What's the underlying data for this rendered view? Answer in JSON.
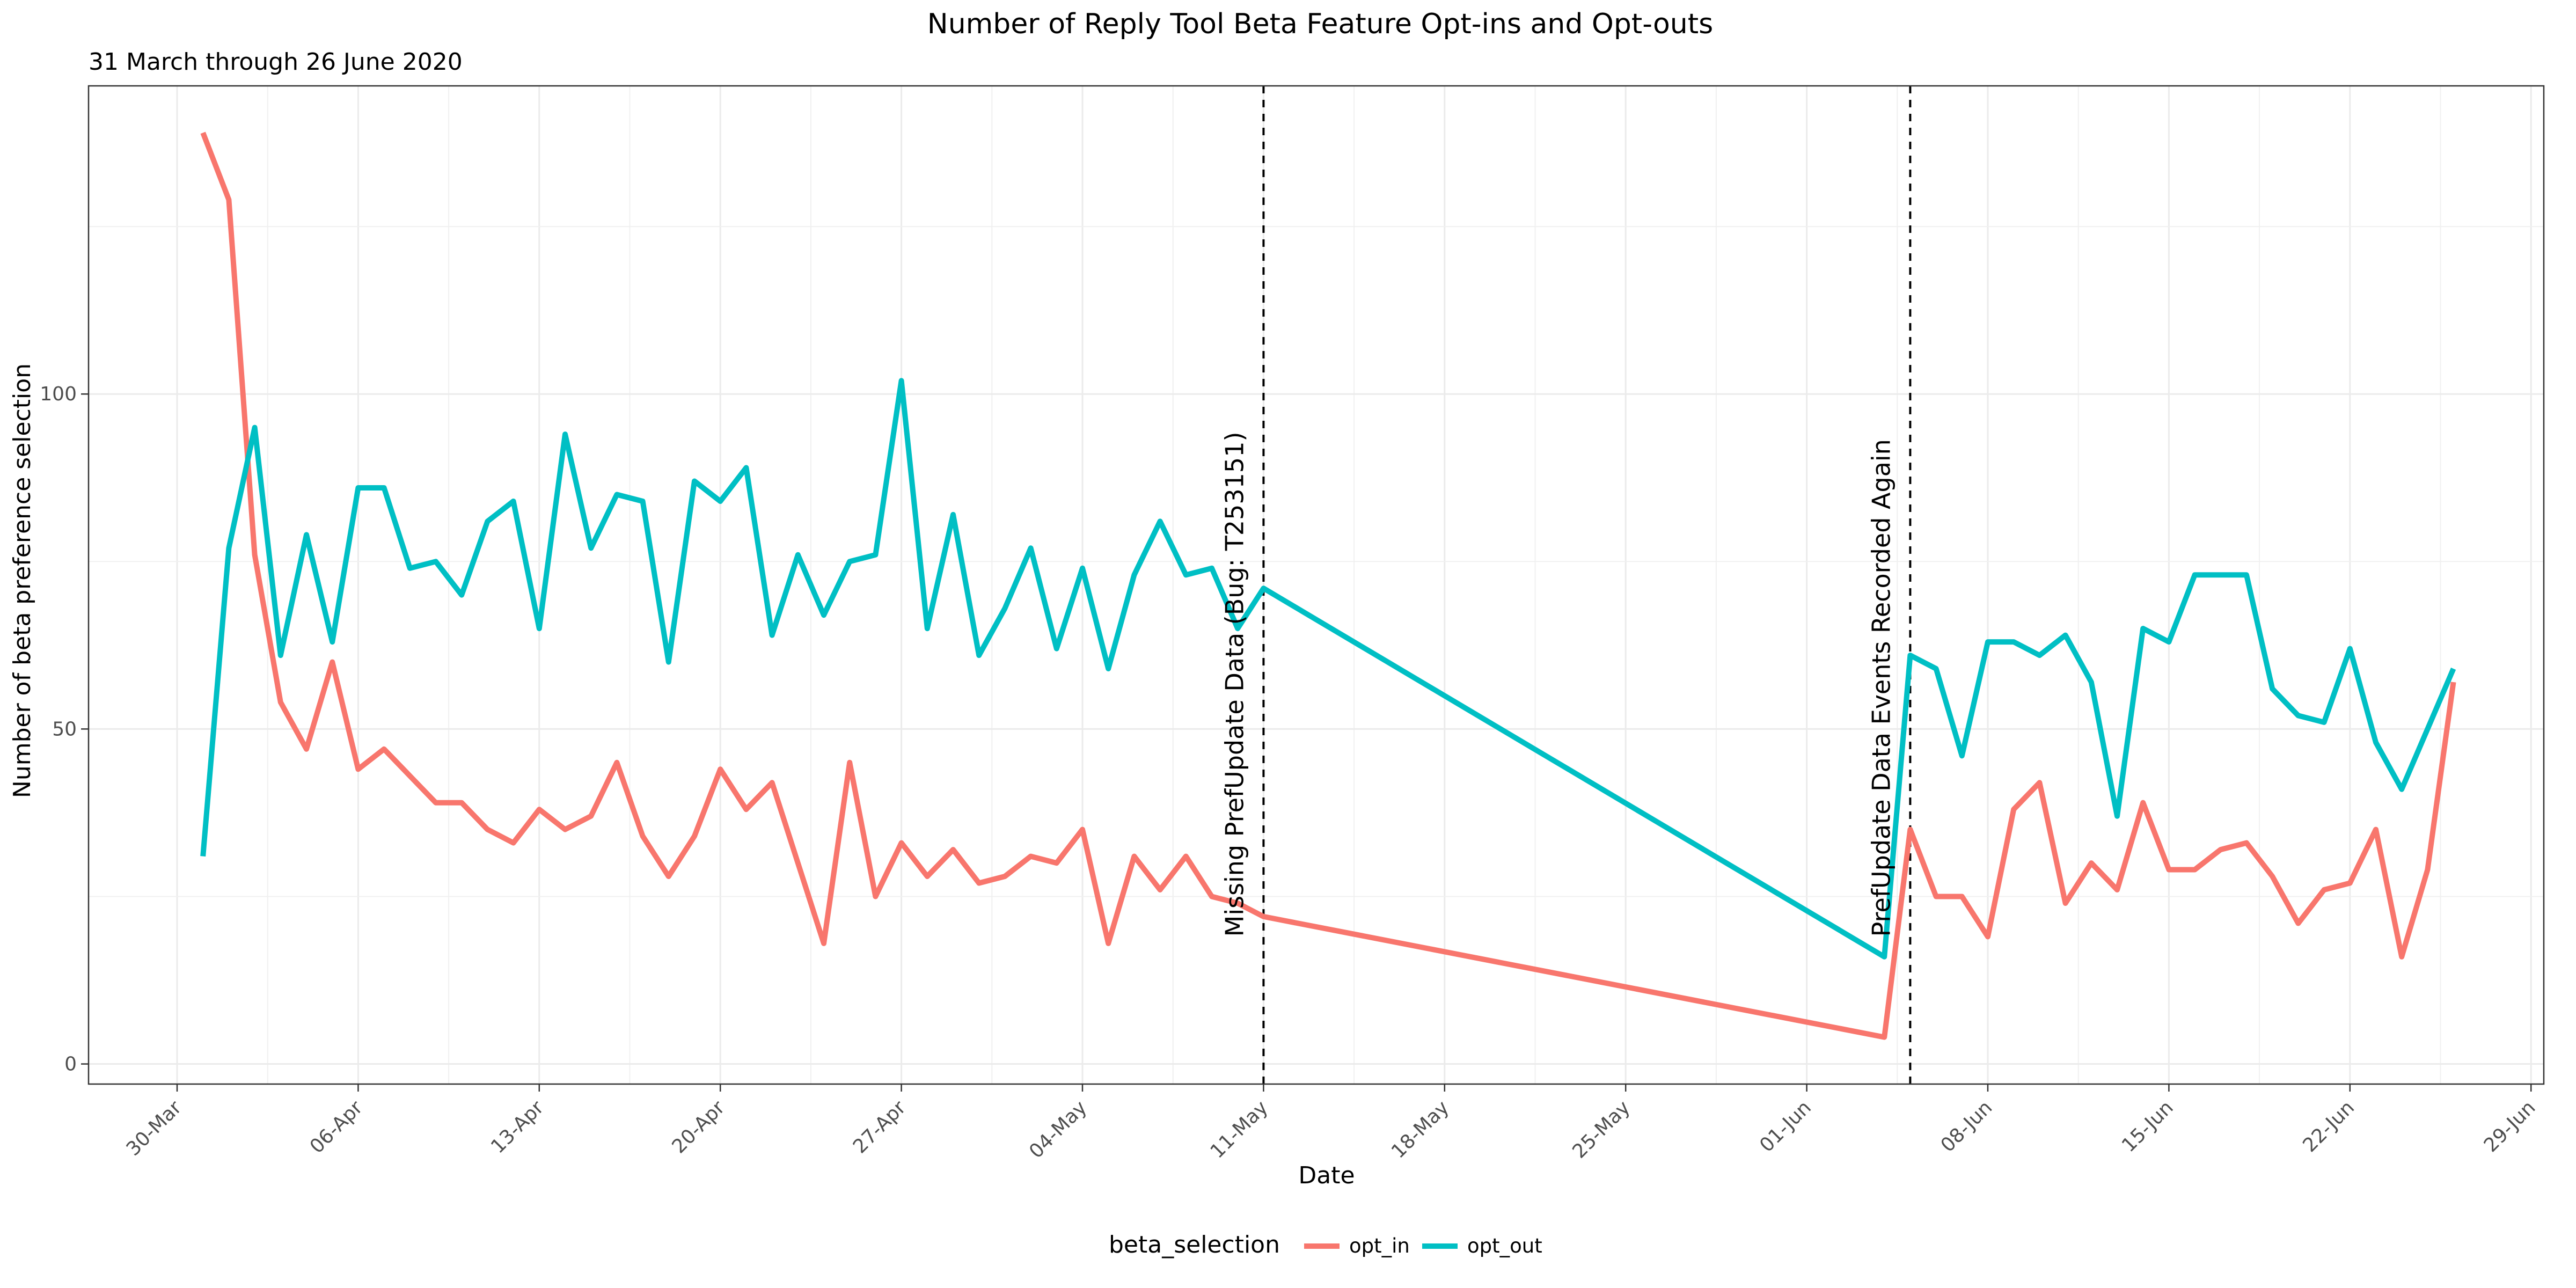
{
  "chart_data": {
    "type": "line",
    "title": "Number of Reply Tool Beta Feature Opt-ins and Opt-outs",
    "subtitle": "31 March through 26 June 2020",
    "xlabel": "Date",
    "ylabel": "Number of beta preference selection",
    "x_ticks": [
      "30-Mar",
      "06-Apr",
      "13-Apr",
      "20-Apr",
      "27-Apr",
      "04-May",
      "11-May",
      "18-May",
      "25-May",
      "01-Jun",
      "08-Jun",
      "15-Jun",
      "22-Jun",
      "29-Jun"
    ],
    "y_ticks": [
      "0",
      "50",
      "100"
    ],
    "ylim": [
      -3,
      146
    ],
    "grid": true,
    "legend_title": "beta_selection",
    "legend_position": "bottom",
    "series": [
      {
        "name": "opt_in",
        "color": "#F8766D",
        "points": [
          [
            "2020-03-31",
            139
          ],
          [
            "2020-04-01",
            129
          ],
          [
            "2020-04-02",
            76
          ],
          [
            "2020-04-03",
            54
          ],
          [
            "2020-04-04",
            47
          ],
          [
            "2020-04-05",
            60
          ],
          [
            "2020-04-06",
            44
          ],
          [
            "2020-04-07",
            47
          ],
          [
            "2020-04-08",
            43
          ],
          [
            "2020-04-09",
            39
          ],
          [
            "2020-04-10",
            39
          ],
          [
            "2020-04-11",
            35
          ],
          [
            "2020-04-12",
            33
          ],
          [
            "2020-04-13",
            38
          ],
          [
            "2020-04-14",
            35
          ],
          [
            "2020-04-15",
            37
          ],
          [
            "2020-04-16",
            45
          ],
          [
            "2020-04-17",
            34
          ],
          [
            "2020-04-18",
            28
          ],
          [
            "2020-04-19",
            34
          ],
          [
            "2020-04-20",
            44
          ],
          [
            "2020-04-21",
            38
          ],
          [
            "2020-04-22",
            42
          ],
          [
            "2020-04-23",
            30
          ],
          [
            "2020-04-24",
            18
          ],
          [
            "2020-04-25",
            45
          ],
          [
            "2020-04-26",
            25
          ],
          [
            "2020-04-27",
            33
          ],
          [
            "2020-04-28",
            28
          ],
          [
            "2020-04-29",
            32
          ],
          [
            "2020-04-30",
            27
          ],
          [
            "2020-05-01",
            28
          ],
          [
            "2020-05-02",
            31
          ],
          [
            "2020-05-03",
            30
          ],
          [
            "2020-05-04",
            35
          ],
          [
            "2020-05-05",
            18
          ],
          [
            "2020-05-06",
            31
          ],
          [
            "2020-05-07",
            26
          ],
          [
            "2020-05-08",
            31
          ],
          [
            "2020-05-09",
            25
          ],
          [
            "2020-05-10",
            24
          ],
          [
            "2020-05-11",
            22
          ],
          [
            "2020-06-04",
            4
          ],
          [
            "2020-06-05",
            35
          ],
          [
            "2020-06-06",
            25
          ],
          [
            "2020-06-07",
            25
          ],
          [
            "2020-06-08",
            19
          ],
          [
            "2020-06-09",
            38
          ],
          [
            "2020-06-10",
            42
          ],
          [
            "2020-06-11",
            24
          ],
          [
            "2020-06-12",
            30
          ],
          [
            "2020-06-13",
            26
          ],
          [
            "2020-06-14",
            39
          ],
          [
            "2020-06-15",
            29
          ],
          [
            "2020-06-16",
            29
          ],
          [
            "2020-06-17",
            32
          ],
          [
            "2020-06-18",
            33
          ],
          [
            "2020-06-19",
            28
          ],
          [
            "2020-06-20",
            21
          ],
          [
            "2020-06-21",
            26
          ],
          [
            "2020-06-22",
            27
          ],
          [
            "2020-06-23",
            35
          ],
          [
            "2020-06-24",
            16
          ],
          [
            "2020-06-25",
            29
          ],
          [
            "2020-06-26",
            57
          ]
        ]
      },
      {
        "name": "opt_out",
        "color": "#00BFC4",
        "points": [
          [
            "2020-03-31",
            31
          ],
          [
            "2020-04-01",
            77
          ],
          [
            "2020-04-02",
            95
          ],
          [
            "2020-04-03",
            61
          ],
          [
            "2020-04-04",
            79
          ],
          [
            "2020-04-05",
            63
          ],
          [
            "2020-04-06",
            86
          ],
          [
            "2020-04-07",
            86
          ],
          [
            "2020-04-08",
            74
          ],
          [
            "2020-04-09",
            75
          ],
          [
            "2020-04-10",
            70
          ],
          [
            "2020-04-11",
            81
          ],
          [
            "2020-04-12",
            84
          ],
          [
            "2020-04-13",
            65
          ],
          [
            "2020-04-14",
            94
          ],
          [
            "2020-04-15",
            77
          ],
          [
            "2020-04-16",
            85
          ],
          [
            "2020-04-17",
            84
          ],
          [
            "2020-04-18",
            60
          ],
          [
            "2020-04-19",
            87
          ],
          [
            "2020-04-20",
            84
          ],
          [
            "2020-04-21",
            89
          ],
          [
            "2020-04-22",
            64
          ],
          [
            "2020-04-23",
            76
          ],
          [
            "2020-04-24",
            67
          ],
          [
            "2020-04-25",
            75
          ],
          [
            "2020-04-26",
            76
          ],
          [
            "2020-04-27",
            102
          ],
          [
            "2020-04-28",
            65
          ],
          [
            "2020-04-29",
            82
          ],
          [
            "2020-04-30",
            61
          ],
          [
            "2020-05-01",
            68
          ],
          [
            "2020-05-02",
            77
          ],
          [
            "2020-05-03",
            62
          ],
          [
            "2020-05-04",
            74
          ],
          [
            "2020-05-05",
            59
          ],
          [
            "2020-05-06",
            73
          ],
          [
            "2020-05-07",
            81
          ],
          [
            "2020-05-08",
            73
          ],
          [
            "2020-05-09",
            74
          ],
          [
            "2020-05-10",
            65
          ],
          [
            "2020-05-11",
            71
          ],
          [
            "2020-06-04",
            16
          ],
          [
            "2020-06-05",
            61
          ],
          [
            "2020-06-06",
            59
          ],
          [
            "2020-06-07",
            46
          ],
          [
            "2020-06-08",
            63
          ],
          [
            "2020-06-09",
            63
          ],
          [
            "2020-06-10",
            61
          ],
          [
            "2020-06-11",
            64
          ],
          [
            "2020-06-12",
            57
          ],
          [
            "2020-06-13",
            37
          ],
          [
            "2020-06-14",
            65
          ],
          [
            "2020-06-15",
            63
          ],
          [
            "2020-06-16",
            73
          ],
          [
            "2020-06-17",
            73
          ],
          [
            "2020-06-18",
            73
          ],
          [
            "2020-06-19",
            56
          ],
          [
            "2020-06-20",
            52
          ],
          [
            "2020-06-21",
            51
          ],
          [
            "2020-06-22",
            62
          ],
          [
            "2020-06-23",
            48
          ],
          [
            "2020-06-24",
            41
          ],
          [
            "2020-06-25",
            50
          ],
          [
            "2020-06-26",
            59
          ]
        ]
      }
    ],
    "annotations": [
      {
        "date": "2020-05-11",
        "label": "Missing PrefUpdate Data (Bug: T253151)"
      },
      {
        "date": "2020-06-05",
        "label": "PrefUpdate Data Events Recorded Again"
      }
    ]
  }
}
